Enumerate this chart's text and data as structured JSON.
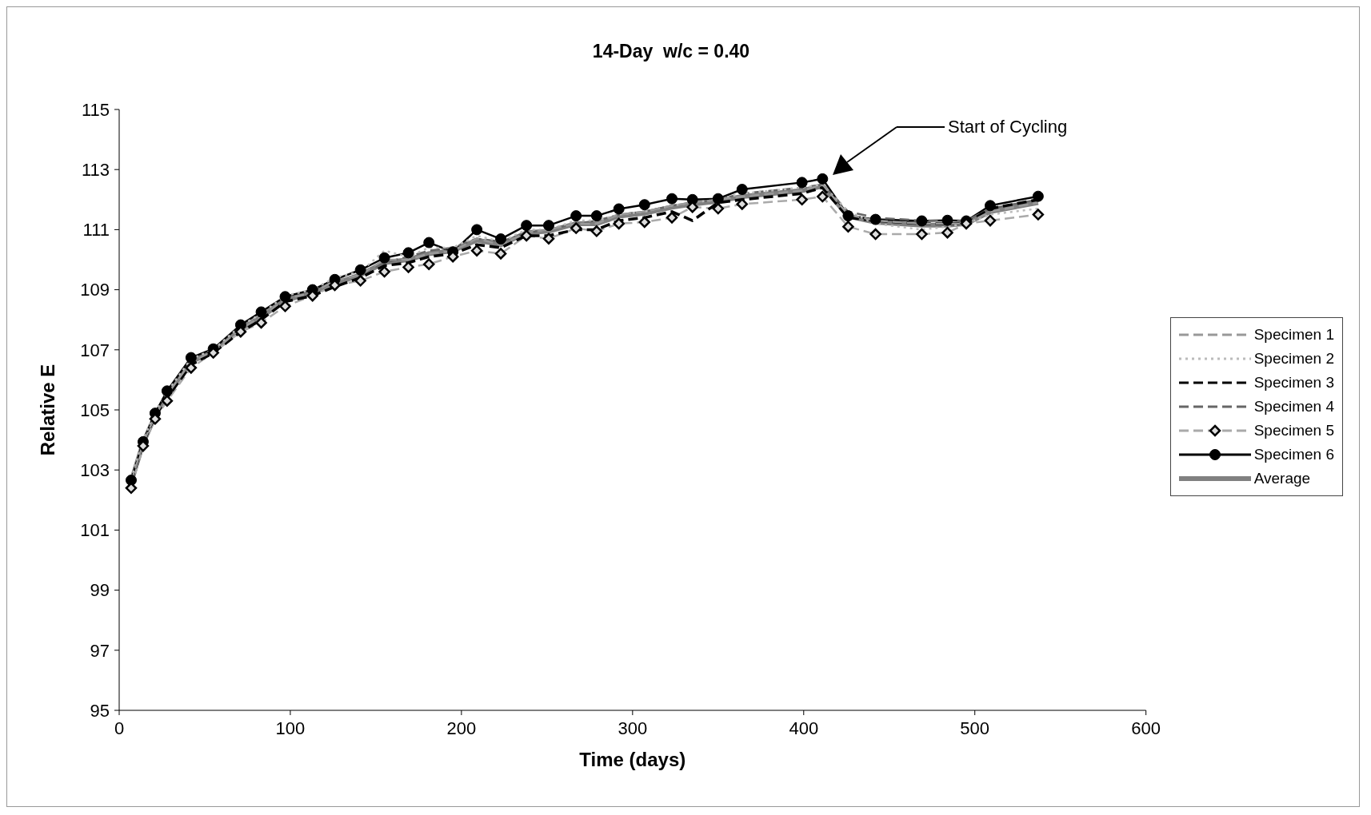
{
  "chart_data": {
    "type": "line",
    "title": "14-Day  w/c = 0.40",
    "xlabel": "Time (days)",
    "ylabel": "Relative E",
    "x": [
      7,
      14,
      21,
      28,
      42,
      55,
      71,
      83,
      97,
      113,
      126,
      141,
      155,
      169,
      181,
      195,
      209,
      223,
      238,
      251,
      267,
      279,
      292,
      307,
      323,
      335,
      350,
      364,
      399,
      411,
      426,
      442,
      469,
      484,
      495,
      509,
      537
    ],
    "xlim": [
      0,
      600
    ],
    "xticks": [
      0,
      100,
      200,
      300,
      400,
      500,
      600
    ],
    "ylim": [
      95,
      115
    ],
    "yticks": [
      95,
      97,
      99,
      101,
      103,
      105,
      107,
      109,
      111,
      113,
      115
    ],
    "grid": false,
    "legend": "right",
    "series": [
      {
        "name": "Specimen 1",
        "color": "#999999",
        "line_style": "dashed",
        "marker": "none",
        "values": [
          102.6,
          103.9,
          104.8,
          105.5,
          106.6,
          106.95,
          107.7,
          108.1,
          108.7,
          108.9,
          109.3,
          109.5,
          110.0,
          110.0,
          110.2,
          110.3,
          110.7,
          110.5,
          110.9,
          111.0,
          111.2,
          111.2,
          111.5,
          111.6,
          111.8,
          111.9,
          112.0,
          112.1,
          112.3,
          112.5,
          111.5,
          111.3,
          111.2,
          111.2,
          111.2,
          111.6,
          111.9
        ]
      },
      {
        "name": "Specimen 2",
        "color": "#bbbbbb",
        "line_style": "dotted",
        "marker": "none",
        "values": [
          102.7,
          104.0,
          104.9,
          105.6,
          106.7,
          107.0,
          107.8,
          108.2,
          108.8,
          109.0,
          109.4,
          109.6,
          110.3,
          110.1,
          110.4,
          110.4,
          110.8,
          110.6,
          111.0,
          111.0,
          111.3,
          111.3,
          111.5,
          111.6,
          111.8,
          111.9,
          112.0,
          112.2,
          112.4,
          112.5,
          111.6,
          111.2,
          111.0,
          111.1,
          111.2,
          111.5,
          111.7
        ]
      },
      {
        "name": "Specimen 3",
        "color": "#000000",
        "line_style": "dashed",
        "marker": "none",
        "values": [
          102.6,
          103.9,
          104.8,
          105.4,
          106.5,
          106.9,
          107.6,
          108.0,
          108.6,
          108.8,
          109.1,
          109.4,
          109.8,
          109.9,
          110.1,
          110.2,
          110.5,
          110.4,
          110.8,
          110.8,
          111.0,
          111.0,
          111.3,
          111.4,
          111.6,
          111.3,
          111.9,
          112.0,
          112.2,
          112.4,
          111.4,
          111.3,
          111.2,
          111.2,
          111.2,
          111.7,
          112.0
        ]
      },
      {
        "name": "Specimen 4",
        "color": "#666666",
        "line_style": "dashed",
        "marker": "none",
        "values": [
          102.6,
          103.9,
          104.8,
          105.5,
          106.6,
          107.0,
          107.7,
          108.1,
          108.7,
          108.9,
          109.3,
          109.5,
          109.9,
          110.1,
          110.3,
          110.4,
          110.7,
          110.6,
          110.9,
          111.0,
          111.2,
          111.3,
          111.5,
          111.6,
          111.8,
          111.9,
          112.0,
          112.2,
          112.4,
          112.5,
          111.6,
          111.4,
          111.3,
          111.3,
          111.3,
          111.7,
          112.0
        ]
      },
      {
        "name": "Specimen 5",
        "color": "#aaaaaa",
        "line_style": "dashed",
        "marker": "diamond",
        "values": [
          102.4,
          103.8,
          104.7,
          105.3,
          106.4,
          106.9,
          107.6,
          107.9,
          108.45,
          108.8,
          109.15,
          109.3,
          109.6,
          109.75,
          109.85,
          110.1,
          110.3,
          110.2,
          110.8,
          110.7,
          111.05,
          110.95,
          111.2,
          111.25,
          111.4,
          111.75,
          111.7,
          111.85,
          112.0,
          112.1,
          111.1,
          110.85,
          110.85,
          110.9,
          111.2,
          111.3,
          111.5
        ]
      },
      {
        "name": "Specimen 6",
        "color": "#000000",
        "line_style": "solid",
        "marker": "circle",
        "values": [
          102.66,
          103.94,
          104.89,
          105.63,
          106.74,
          107.03,
          107.83,
          108.26,
          108.77,
          109.0,
          109.34,
          109.66,
          110.06,
          110.23,
          110.57,
          110.26,
          111.0,
          110.69,
          111.14,
          111.14,
          111.46,
          111.46,
          111.69,
          111.83,
          112.03,
          112.0,
          112.03,
          112.34,
          112.57,
          112.69,
          111.46,
          111.34,
          111.29,
          111.31,
          111.29,
          111.8,
          112.11
        ]
      },
      {
        "name": "Average",
        "color": "#808080",
        "line_style": "solid",
        "marker": "none",
        "values": [
          102.6,
          103.9,
          104.8,
          105.5,
          106.6,
          106.95,
          107.7,
          108.1,
          108.65,
          108.9,
          109.2,
          109.5,
          109.9,
          110.0,
          110.2,
          110.3,
          110.65,
          110.5,
          110.9,
          110.95,
          111.2,
          111.2,
          111.45,
          111.55,
          111.75,
          111.85,
          111.95,
          112.1,
          112.3,
          112.45,
          111.45,
          111.25,
          111.15,
          111.15,
          111.2,
          111.6,
          111.9
        ]
      }
    ],
    "annotations": [
      "Start of Cycling"
    ]
  }
}
